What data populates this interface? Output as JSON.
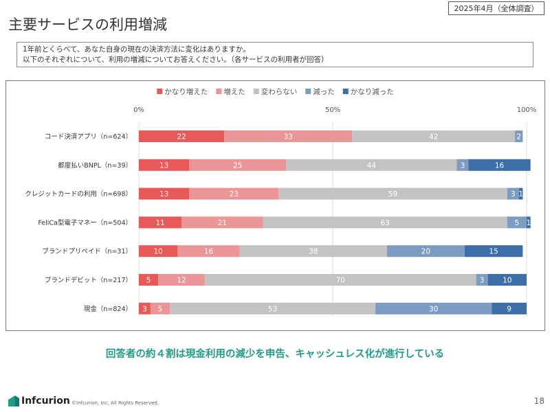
{
  "header": {
    "date_label": "2025年4月（全体調査）",
    "title": "主要サービスの利用増減"
  },
  "question": {
    "line1": "1年前とくらべて、あなた自身の現在の決済方法に変化はありますか。",
    "line2": "以下のそれぞれについて、利用の増減についてお答えください。（各サービスの利用者が回答）"
  },
  "chart_data": {
    "type": "bar",
    "orientation": "horizontal",
    "stacked": "percent",
    "legend_position": "top",
    "x_ticks": [
      "0%",
      "50%",
      "100%"
    ],
    "xlim": [
      0,
      100
    ],
    "grid": true,
    "categories": [
      "コード決済アプリ（n=624）",
      "都度払いBNPL（n=39）",
      "クレジットカードの利用（n=698）",
      "FeliCa型電子マネー（n=504）",
      "ブランドプリペイド（n=31）",
      "ブランドデビット（n=217）",
      "現金（n=824）"
    ],
    "series": [
      {
        "name": "かなり増えた",
        "color": "#e85a5a",
        "values": [
          22,
          13,
          13,
          11,
          10,
          5,
          3
        ]
      },
      {
        "name": "増えた",
        "color": "#eb9696",
        "values": [
          33,
          25,
          23,
          21,
          16,
          12,
          5
        ]
      },
      {
        "name": "変わらない",
        "color": "#c3c3c3",
        "values": [
          42,
          44,
          59,
          63,
          38,
          70,
          53
        ]
      },
      {
        "name": "減った",
        "color": "#7d9cc2",
        "values": [
          2,
          3,
          3,
          5,
          20,
          3,
          30
        ]
      },
      {
        "name": "かなり減った",
        "color": "#3c6ea8",
        "values": [
          0,
          16,
          1,
          1,
          15,
          10,
          9
        ]
      }
    ]
  },
  "conclusion": "回答者の約４割は現金利用の減少を申告、キャッシュレス化が進行している",
  "footer": {
    "logo_text": "Infcurion",
    "copyright": "©Infcurion, Inc.   All Rights Reserved.",
    "page_number": "18"
  },
  "colors": {
    "accent": "#1e9c87"
  }
}
